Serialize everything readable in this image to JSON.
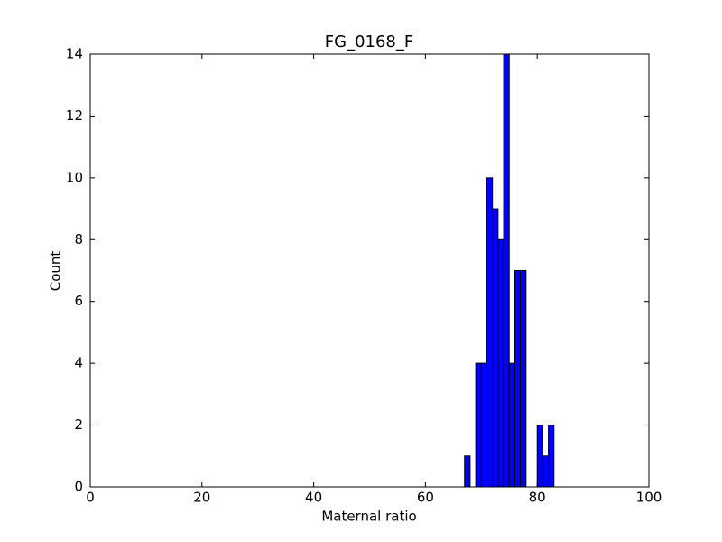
{
  "chart_data": {
    "type": "histogram",
    "title": "FG_0168_F",
    "x_label": "Maternal ratio",
    "y_label": "Count",
    "bins": [
      67,
      68,
      69,
      70,
      71,
      72,
      73,
      74,
      75,
      76,
      77,
      78,
      79,
      80,
      81,
      82,
      83
    ],
    "values": [
      1,
      0,
      4,
      4,
      10,
      9,
      8,
      14,
      4,
      7,
      7,
      0,
      0,
      2,
      1,
      2
    ],
    "color": "#0000ff",
    "edgecolor": "#000000",
    "xlim": [
      0,
      100
    ],
    "xticks": [
      0,
      20,
      40,
      60,
      80,
      100
    ],
    "ylim": [
      0,
      14
    ],
    "yticks": [
      0,
      2,
      4,
      6,
      8,
      10,
      12,
      14
    ],
    "grid": false
  }
}
